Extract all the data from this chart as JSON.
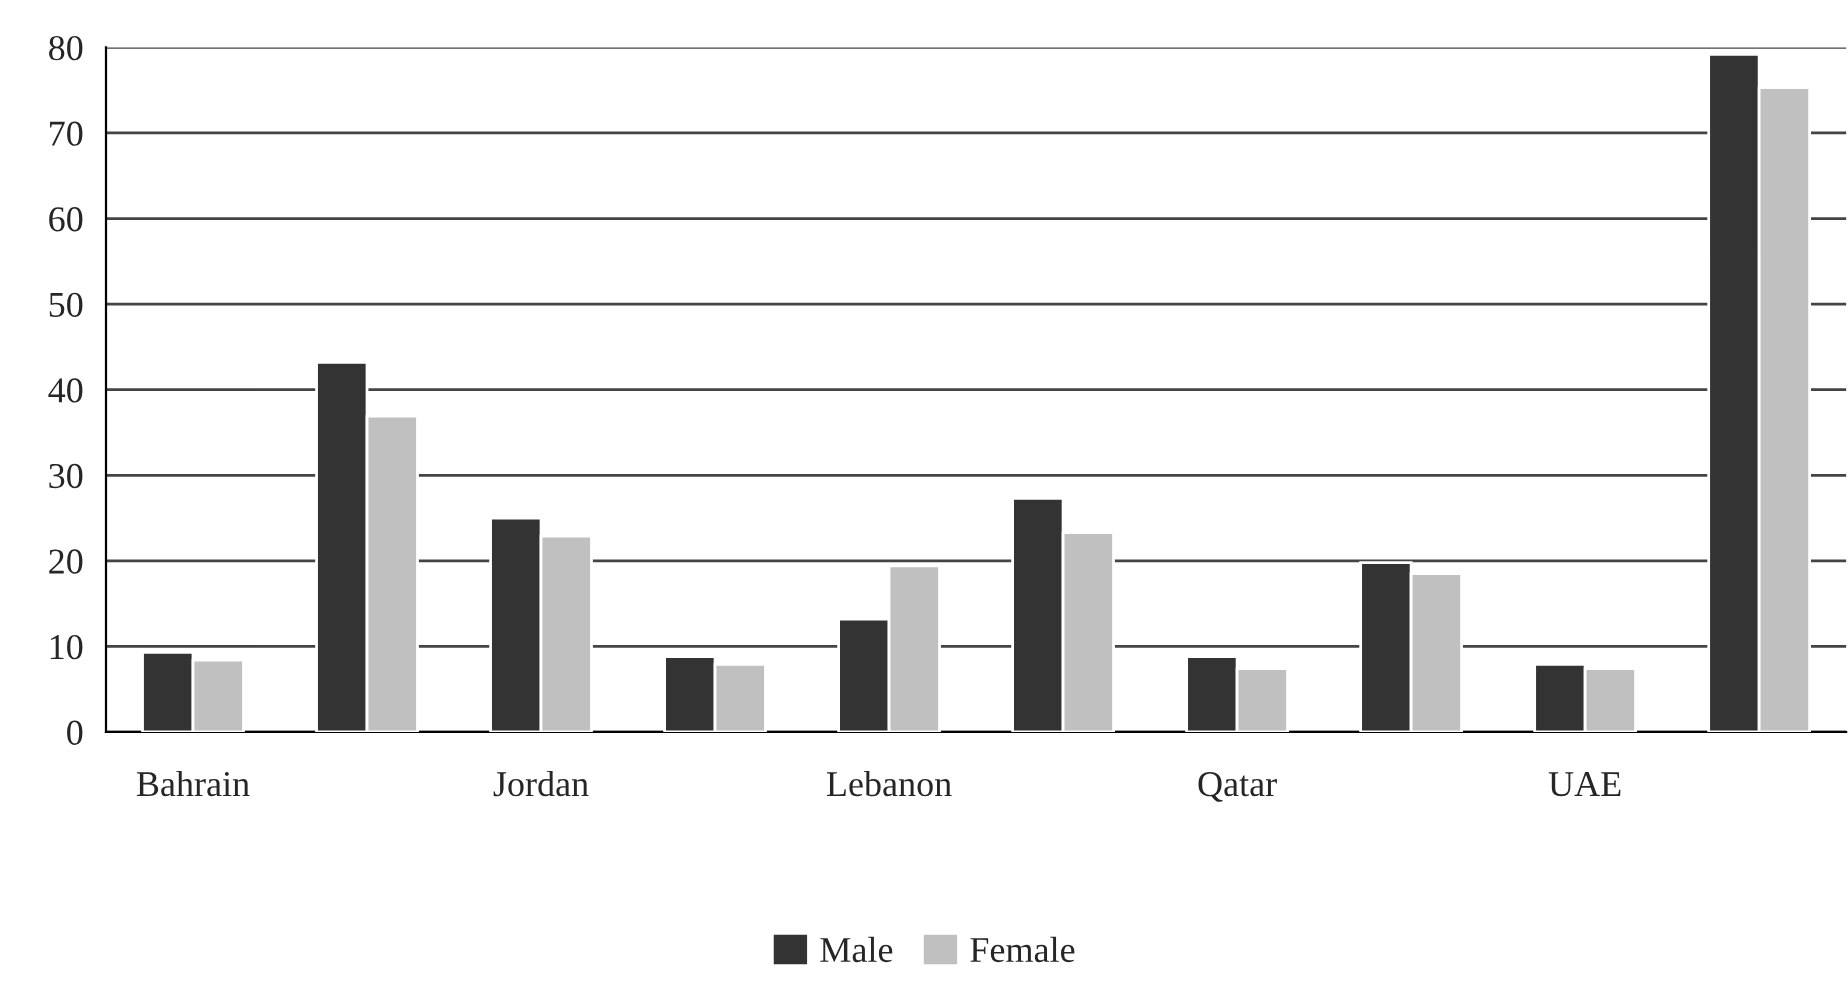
{
  "chart_data": {
    "type": "bar",
    "categories": [
      "Bahrain",
      null,
      "Jordan",
      null,
      "Lebanon",
      null,
      "Qatar",
      null,
      "UAE",
      null
    ],
    "series": [
      {
        "name": "Male",
        "color": "#333333",
        "values": [
          9.3,
          43.2,
          25,
          8.8,
          13.2,
          27.3,
          8.8,
          19.8,
          7.9,
          79.2
        ]
      },
      {
        "name": "Female",
        "color": "#c0c0c0",
        "values": [
          8.4,
          36.9,
          22.9,
          7.9,
          19.4,
          23.3,
          7.4,
          18.5,
          7.4,
          75.3
        ]
      }
    ],
    "ylim": [
      0,
      80
    ],
    "yticks": [
      0,
      10,
      20,
      30,
      40,
      50,
      60,
      70,
      80
    ],
    "grid": "y",
    "legend": "bottom"
  }
}
